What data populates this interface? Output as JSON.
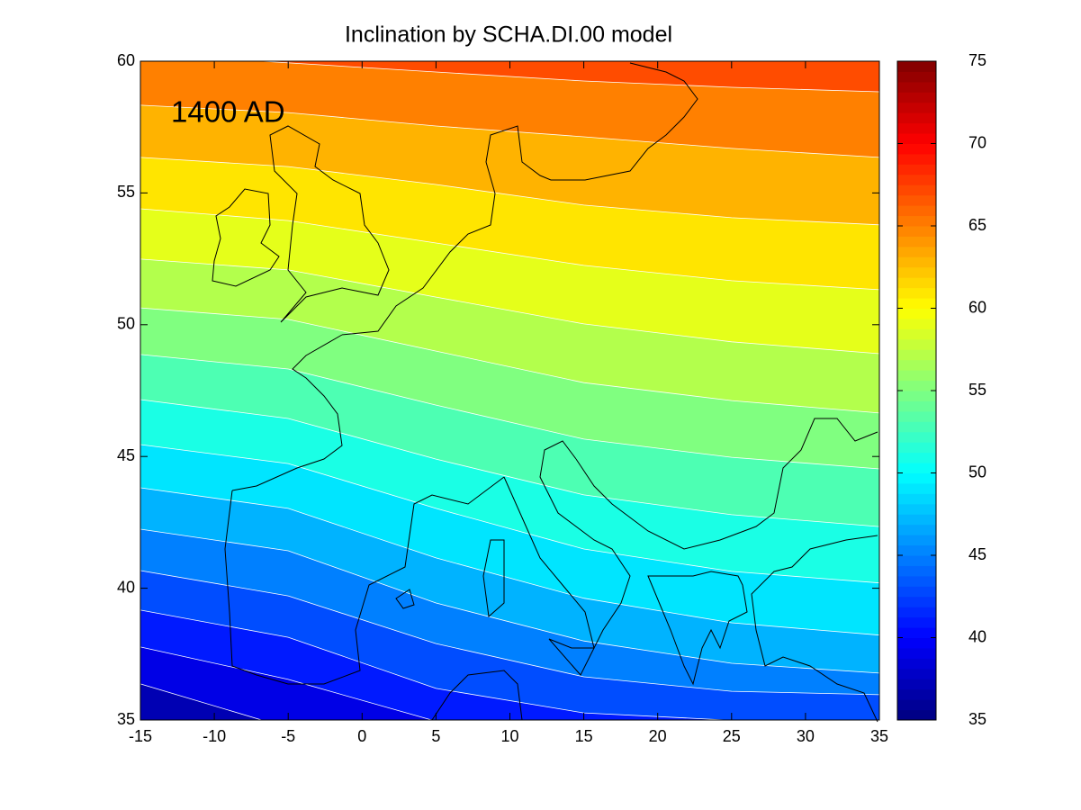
{
  "chart_data": {
    "type": "contour",
    "title": "Inclination by SCHA.DI.00 model",
    "annotation": "1400 AD",
    "xlim": [
      -15,
      35
    ],
    "ylim": [
      35,
      60
    ],
    "xticks": [
      -15,
      -10,
      -5,
      0,
      5,
      10,
      15,
      20,
      25,
      30,
      35
    ],
    "yticks": [
      35,
      40,
      45,
      50,
      55,
      60
    ],
    "colormap": "jet",
    "clim": [
      35,
      75
    ],
    "cticks": [
      35,
      40,
      45,
      50,
      55,
      60,
      65,
      70,
      75
    ],
    "contour_color": "#ffffff",
    "contours": [
      {
        "level": 66,
        "lon": [
          -6.8,
          5,
          15,
          25,
          35
        ],
        "lat": [
          60,
          59.59,
          59.25,
          59.01,
          58.84
        ]
      },
      {
        "level": 64,
        "lon": [
          -15,
          -5,
          5,
          15,
          25,
          35
        ],
        "lat": [
          58.33,
          58.05,
          57.54,
          57.13,
          56.69,
          56.35
        ]
      },
      {
        "level": 62,
        "lon": [
          -15,
          -5,
          5,
          15,
          25,
          35
        ],
        "lat": [
          56.35,
          56.0,
          55.32,
          54.54,
          54.06,
          53.79
        ]
      },
      {
        "level": 60,
        "lon": [
          -15,
          -5,
          5,
          15,
          25,
          35
        ],
        "lat": [
          54.4,
          53.95,
          53.1,
          52.25,
          51.67,
          51.33
        ]
      },
      {
        "level": 58,
        "lon": [
          -15,
          -5,
          5,
          15,
          25,
          35
        ],
        "lat": [
          52.49,
          52.08,
          51.05,
          50.03,
          49.35,
          48.9
        ]
      },
      {
        "level": 56,
        "lon": [
          -15,
          -5,
          5,
          15,
          25,
          35
        ],
        "lat": [
          50.64,
          50.2,
          49.0,
          47.8,
          47.12,
          46.65
        ]
      },
      {
        "level": 54,
        "lon": [
          -15,
          -5,
          5,
          15,
          25,
          35
        ],
        "lat": [
          48.87,
          48.32,
          46.95,
          45.66,
          44.97,
          44.53
        ]
      },
      {
        "level": 52,
        "lon": [
          -15,
          -5,
          5,
          15,
          25,
          35
        ],
        "lat": [
          47.16,
          46.44,
          44.9,
          43.54,
          42.79,
          42.34
        ]
      },
      {
        "level": 50,
        "lon": [
          -15,
          -5,
          5,
          15,
          25,
          35
        ],
        "lat": [
          45.45,
          44.73,
          43.03,
          41.49,
          40.64,
          40.2
        ]
      },
      {
        "level": 48,
        "lon": [
          -15,
          -5,
          5,
          15,
          25,
          35
        ],
        "lat": [
          43.81,
          43.03,
          41.15,
          39.62,
          38.69,
          38.22
        ]
      },
      {
        "level": 46,
        "lon": [
          -15,
          -5,
          5,
          15,
          25,
          35
        ],
        "lat": [
          42.24,
          41.42,
          39.44,
          38.0,
          37.15,
          36.78
        ]
      },
      {
        "level": 44,
        "lon": [
          -15,
          -5,
          5,
          15,
          25,
          35
        ],
        "lat": [
          40.67,
          39.71,
          37.9,
          36.64,
          36.09,
          35.96
        ]
      },
      {
        "level": 42,
        "lon": [
          -15,
          -5,
          5,
          15,
          24.6
        ],
        "lat": [
          39.17,
          38.14,
          36.2,
          35.27,
          35
        ]
      },
      {
        "level": 40,
        "lon": [
          -15,
          -5,
          4.7
        ],
        "lat": [
          37.77,
          36.54,
          35
        ]
      },
      {
        "level": 38,
        "lon": [
          -15,
          -6.8
        ],
        "lat": [
          36.37,
          35
        ]
      }
    ]
  }
}
